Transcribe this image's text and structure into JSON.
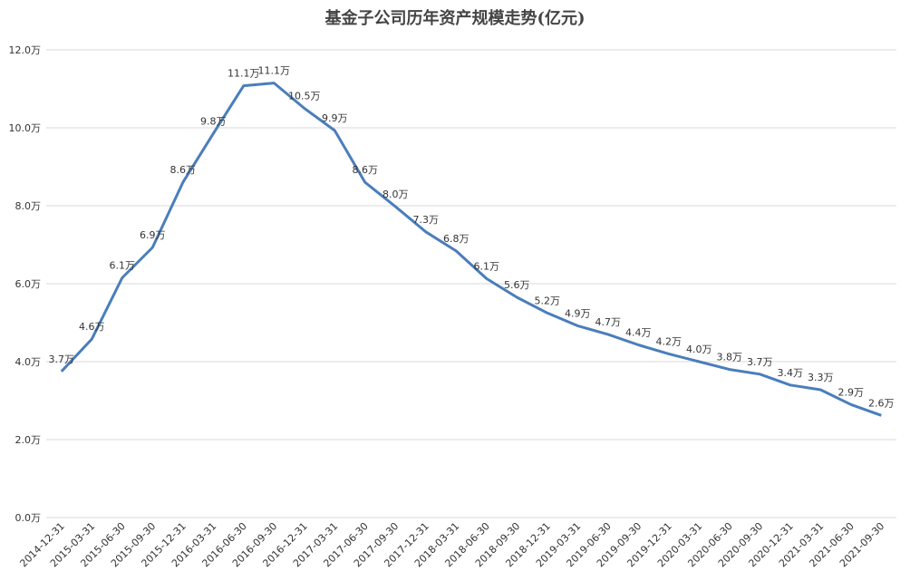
{
  "chart_data": {
    "type": "line",
    "title": "基金子公司历年资产规模走势(亿元)",
    "categories": [
      "2014-12-31",
      "2015-03-31",
      "2015-06-30",
      "2015-09-30",
      "2015-12-31",
      "2016-03-31",
      "2016-06-30",
      "2016-09-30",
      "2016-12-31",
      "2017-03-31",
      "2017-06-30",
      "2017-09-30",
      "2017-12-31",
      "2018-03-31",
      "2018-06-30",
      "2018-09-30",
      "2018-12-31",
      "2019-03-31",
      "2019-06-30",
      "2019-09-30",
      "2019-12-31",
      "2020-03-31",
      "2020-06-30",
      "2020-09-30",
      "2020-12-31",
      "2021-03-31",
      "2021-06-30",
      "2021-09-30"
    ],
    "values": [
      3.75,
      4.58,
      6.15,
      6.93,
      8.6,
      9.85,
      11.08,
      11.15,
      10.5,
      9.93,
      8.6,
      7.98,
      7.33,
      6.84,
      6.13,
      5.65,
      5.25,
      4.92,
      4.7,
      4.43,
      4.2,
      4.0,
      3.8,
      3.68,
      3.4,
      3.28,
      2.9,
      2.62
    ],
    "value_labels": [
      "3.7万",
      "4.6万",
      "6.1万",
      "6.9万",
      "8.6万",
      "9.8万",
      "11.1万",
      "11.1万",
      "10.5万",
      "9.9万",
      "8.6万",
      "8.0万",
      "7.3万",
      "6.8万",
      "6.1万",
      "5.6万",
      "5.2万",
      "4.9万",
      "4.7万",
      "4.4万",
      "4.2万",
      "4.0万",
      "3.8万",
      "3.7万",
      "3.4万",
      "3.3万",
      "2.9万",
      "2.6万"
    ],
    "color": "#4a7ebb",
    "ylim": [
      0,
      12
    ],
    "yticks": [
      {
        "value": 0,
        "label": "0.0万"
      },
      {
        "value": 2,
        "label": "2.0万"
      },
      {
        "value": 4,
        "label": "4.0万"
      },
      {
        "value": 6,
        "label": "6.0万"
      },
      {
        "value": 8,
        "label": "8.0万"
      },
      {
        "value": 10,
        "label": "10.0万"
      },
      {
        "value": 12,
        "label": "12.0万"
      }
    ],
    "grid": true
  }
}
